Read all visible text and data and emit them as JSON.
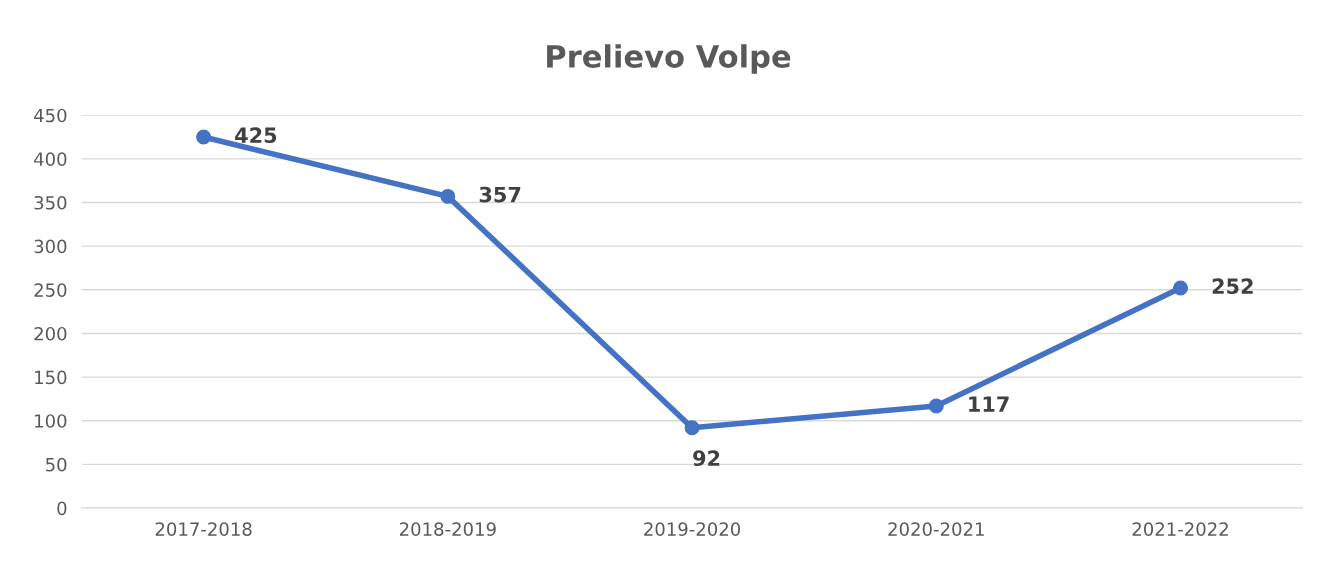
{
  "chart_data": {
    "type": "line",
    "title": "Prelievo Volpe",
    "categories": [
      "2017-2018",
      "2018-2019",
      "2019-2020",
      "2020-2021",
      "2021-2022"
    ],
    "series": [
      {
        "color": "#4472c4",
        "values": [
          425,
          357,
          92,
          117,
          252
        ]
      }
    ],
    "ylim": [
      0,
      450
    ],
    "yticks": [
      0,
      50,
      100,
      150,
      200,
      250,
      300,
      350,
      400,
      450
    ],
    "grid": "y",
    "marker": "circle",
    "line_style": "solid",
    "data_labels": true
  }
}
